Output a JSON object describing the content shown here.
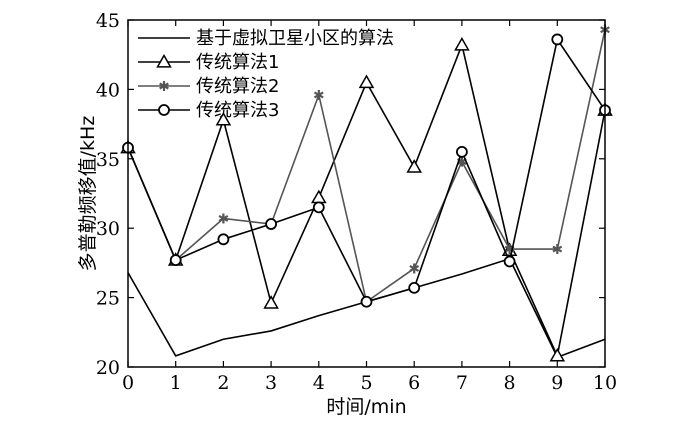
{
  "chart_data": {
    "type": "line",
    "xlabel": "时间/min",
    "ylabel": "多普勒频移值/kHz",
    "xlim": [
      0,
      10
    ],
    "ylim": [
      20,
      45
    ],
    "xticks": [
      0,
      1,
      2,
      3,
      4,
      5,
      6,
      7,
      8,
      9,
      10
    ],
    "yticks": [
      20,
      25,
      30,
      35,
      40,
      45
    ],
    "grid": false,
    "legend_position": "top-left",
    "x": [
      0,
      1,
      2,
      3,
      4,
      5,
      6,
      7,
      8,
      9,
      10
    ],
    "series": [
      {
        "name": "基于虚拟卫星小区的算法",
        "marker": "none",
        "color": "#000000",
        "values": [
          26.8,
          20.8,
          22.0,
          22.6,
          23.7,
          24.7,
          25.7,
          26.7,
          27.8,
          20.7,
          22.0
        ]
      },
      {
        "name": "传统算法1",
        "marker": "triangle",
        "color": "#000000",
        "values": [
          35.8,
          27.7,
          37.8,
          24.6,
          32.2,
          40.5,
          34.4,
          43.2,
          28.4,
          20.8,
          38.5
        ]
      },
      {
        "name": "传统算法2",
        "marker": "star",
        "color": "#555555",
        "values": [
          35.8,
          27.7,
          30.7,
          30.3,
          39.6,
          24.7,
          27.1,
          34.8,
          28.5,
          28.5,
          44.3
        ]
      },
      {
        "name": "传统算法3",
        "marker": "circle",
        "color": "#000000",
        "values": [
          35.8,
          27.7,
          29.2,
          30.3,
          31.5,
          24.7,
          25.7,
          35.5,
          27.6,
          43.6,
          38.5
        ]
      }
    ]
  }
}
